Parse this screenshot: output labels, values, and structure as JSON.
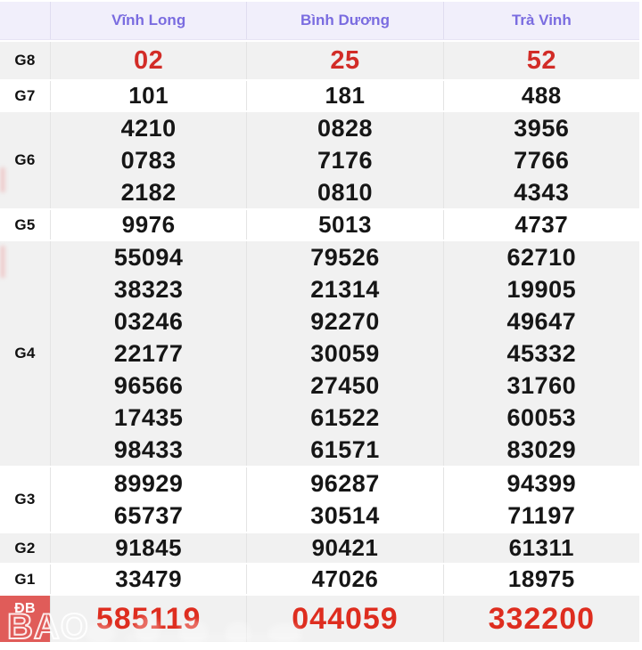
{
  "header": {
    "columns": [
      "Vĩnh Long",
      "Bình Dương",
      "Trà Vinh"
    ]
  },
  "table": {
    "rows": [
      {
        "label": "G8",
        "values": [
          [
            "02"
          ],
          [
            "25"
          ],
          [
            "52"
          ]
        ]
      },
      {
        "label": "G7",
        "values": [
          [
            "101"
          ],
          [
            "181"
          ],
          [
            "488"
          ]
        ]
      },
      {
        "label": "G6",
        "values": [
          [
            "4210",
            "0783",
            "2182"
          ],
          [
            "0828",
            "7176",
            "0810"
          ],
          [
            "3956",
            "7766",
            "4343"
          ]
        ]
      },
      {
        "label": "G5",
        "values": [
          [
            "9976"
          ],
          [
            "5013"
          ],
          [
            "4737"
          ]
        ]
      },
      {
        "label": "G4",
        "values": [
          [
            "55094",
            "38323",
            "03246",
            "22177",
            "96566",
            "17435",
            "98433"
          ],
          [
            "79526",
            "21314",
            "92270",
            "30059",
            "27450",
            "61522",
            "61571"
          ],
          [
            "62710",
            "19905",
            "49647",
            "45332",
            "31760",
            "60053",
            "83029"
          ]
        ]
      },
      {
        "label": "G3",
        "values": [
          [
            "89929",
            "65737"
          ],
          [
            "96287",
            "30514"
          ],
          [
            "94399",
            "71197"
          ]
        ]
      },
      {
        "label": "G2",
        "values": [
          [
            "91845"
          ],
          [
            "90421"
          ],
          [
            "61311"
          ]
        ]
      },
      {
        "label": "G1",
        "values": [
          [
            "33479"
          ],
          [
            "47026"
          ],
          [
            "18975"
          ]
        ]
      },
      {
        "label": "ĐB",
        "values": [
          [
            "585119"
          ],
          [
            "044059"
          ],
          [
            "332200"
          ]
        ]
      }
    ]
  },
  "watermark": {
    "text": "BAO"
  },
  "colors": {
    "header_bg": "#f1effb",
    "header_text": "#7a6ce0",
    "shade_row_bg": "#f1f1f1",
    "red_number": "#d22c27",
    "db_number": "#de2d1f",
    "db_label_bg": "#e05c59",
    "grid_line": "#e4e4e4"
  }
}
